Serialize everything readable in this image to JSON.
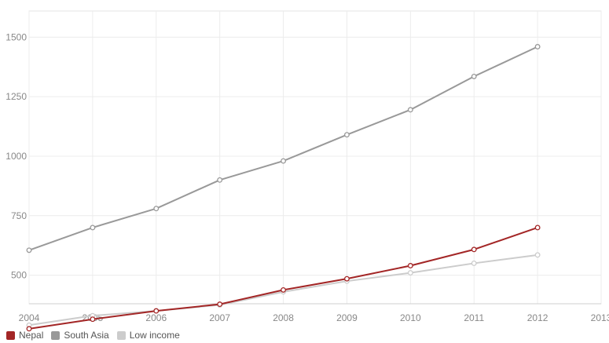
{
  "chart_data": {
    "type": "line",
    "x": [
      2004,
      2005,
      2006,
      2007,
      2008,
      2009,
      2010,
      2011,
      2012
    ],
    "x_ticks": [
      "2004",
      "2005",
      "2006",
      "2007",
      "2008",
      "2009",
      "2010",
      "2011",
      "2012",
      "2013"
    ],
    "y_ticks": [
      "500",
      "750",
      "1000",
      "1250",
      "1500"
    ],
    "xlim": [
      2004,
      2013
    ],
    "ylim": [
      380,
      1610
    ],
    "grid": true,
    "legend": "bottom-left",
    "series": [
      {
        "name": "Low income",
        "color": "#cccccc",
        "values": [
          290,
          330,
          350,
          375,
          430,
          475,
          510,
          550,
          585
        ]
      },
      {
        "name": "South Asia",
        "color": "#999999",
        "values": [
          605,
          700,
          780,
          900,
          980,
          1090,
          1195,
          1335,
          1460
        ]
      },
      {
        "name": "Nepal",
        "color": "#a32626",
        "values": [
          275,
          315,
          350,
          378,
          438,
          485,
          540,
          608,
          700
        ]
      }
    ],
    "legend_order": [
      "Nepal",
      "South Asia",
      "Low income"
    ]
  }
}
